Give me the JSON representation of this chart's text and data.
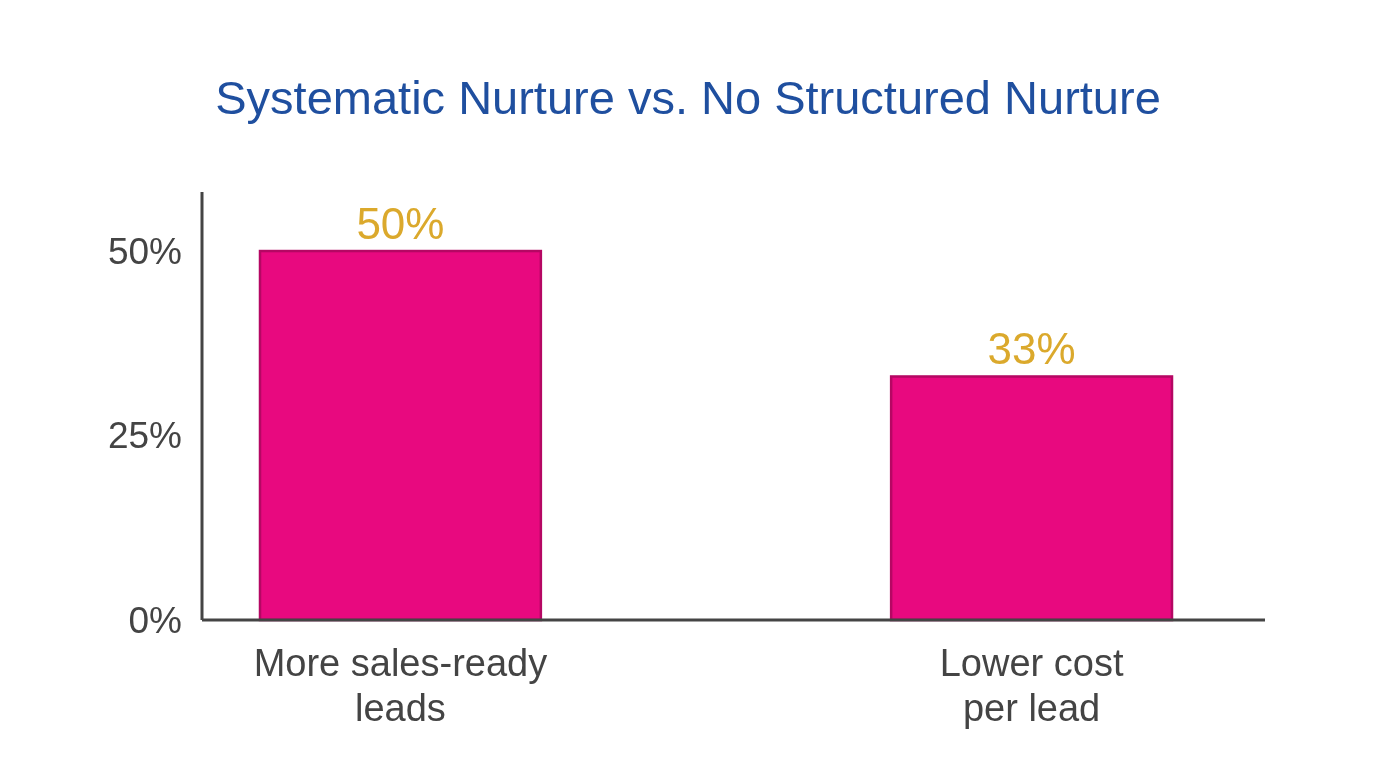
{
  "chart_data": {
    "type": "bar",
    "title": "Systematic Nurture vs. No Structured Nurture",
    "categories": [
      "More sales-ready leads",
      "Lower cost per lead"
    ],
    "values": [
      50,
      33
    ],
    "color": "#e8097f",
    "value_labels": [
      "50%",
      "33%"
    ],
    "ylim": [
      0,
      58
    ],
    "yticks": [
      {
        "value": 0,
        "label": "0%"
      },
      {
        "value": 25,
        "label": "25%"
      },
      {
        "value": 50,
        "label": "50%"
      }
    ],
    "grid": false
  }
}
